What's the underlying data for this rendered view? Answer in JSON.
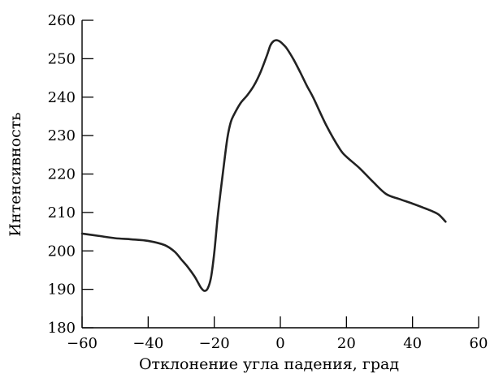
{
  "chart_data": {
    "type": "line",
    "xlabel": "Отклонение угла падения, град",
    "ylabel": "Интенсивность",
    "xlim": [
      -60,
      60
    ],
    "ylim": [
      180,
      260
    ],
    "xticks": [
      -60,
      -40,
      -20,
      0,
      20,
      40,
      60
    ],
    "xtick_labels": [
      "−60",
      "−40",
      "−20",
      "0",
      "20",
      "40",
      "60"
    ],
    "yticks": [
      180,
      190,
      200,
      210,
      220,
      230,
      240,
      250,
      260
    ],
    "ytick_labels": [
      "180",
      "190",
      "200",
      "210",
      "220",
      "230",
      "240",
      "250",
      "260"
    ],
    "grid": false,
    "series": [
      {
        "color": "#222222",
        "x": [
          -60,
          -55,
          -50,
          -45,
          -40,
          -35,
          -32,
          -30,
          -28,
          -26,
          -25,
          -24,
          -23,
          -22,
          -21,
          -20,
          -19,
          -18,
          -17,
          -16,
          -15,
          -14,
          -12,
          -10,
          -8,
          -6,
          -4,
          -3,
          -2,
          -1,
          0,
          1,
          2,
          4,
          6,
          8,
          10,
          14,
          18,
          20,
          24,
          28,
          32,
          36,
          40,
          44,
          46,
          48,
          50
        ],
        "y": [
          204.5,
          203.9,
          203.3,
          203.0,
          202.6,
          201.5,
          199.8,
          197.8,
          195.8,
          193.4,
          191.9,
          190.4,
          189.6,
          190.2,
          193.0,
          199.5,
          208.5,
          216.0,
          223.0,
          229.5,
          233.5,
          235.5,
          238.5,
          240.5,
          243.0,
          246.5,
          251.0,
          253.5,
          254.6,
          254.8,
          254.4,
          253.6,
          252.6,
          249.8,
          246.5,
          243.0,
          239.8,
          232.5,
          226.5,
          224.5,
          221.5,
          218.0,
          214.8,
          213.5,
          212.3,
          211.0,
          210.3,
          209.4,
          207.6
        ]
      }
    ]
  }
}
